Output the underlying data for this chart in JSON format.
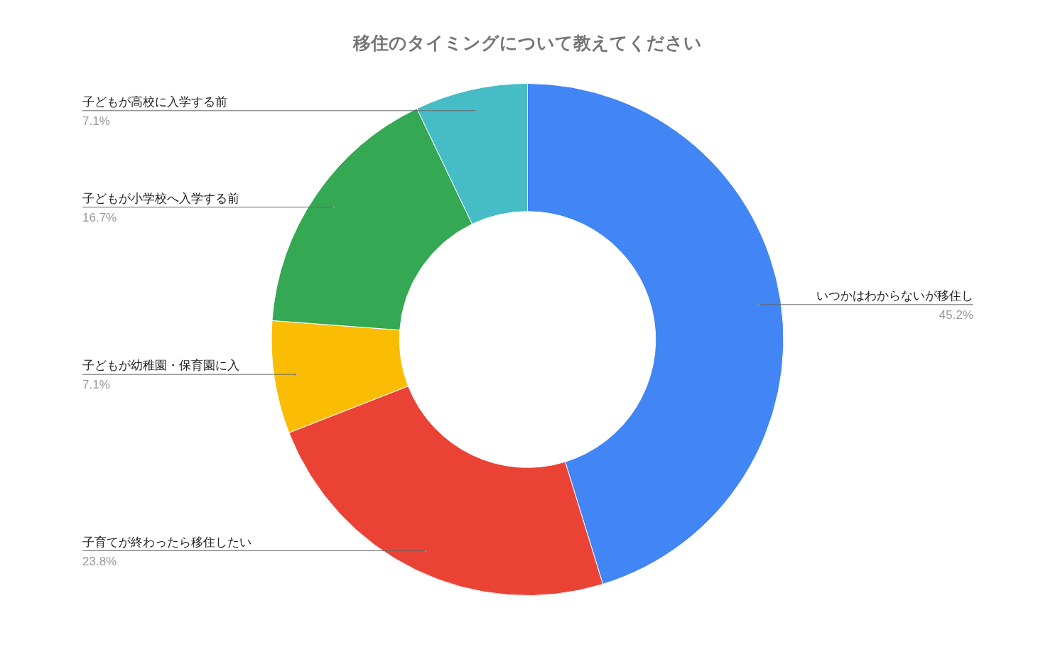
{
  "chart_data": {
    "type": "donut",
    "title": "移住のタイミングについて教えてください",
    "categories": [
      "いつかはわからないが移住し",
      "子育てが終わったら移住したい",
      "子どもが幼稚園・保育園に入",
      "子どもが小学校へ入学する前",
      "子どもが高校に入学する前"
    ],
    "values": [
      45.2,
      23.8,
      7.1,
      16.7,
      7.1
    ],
    "colors": [
      "#4285f4",
      "#ea4335",
      "#fbbc04",
      "#34a853",
      "#46bdc6"
    ],
    "value_labels": [
      "45.2%",
      "23.8%",
      "7.1%",
      "16.7%",
      "7.1%"
    ]
  }
}
